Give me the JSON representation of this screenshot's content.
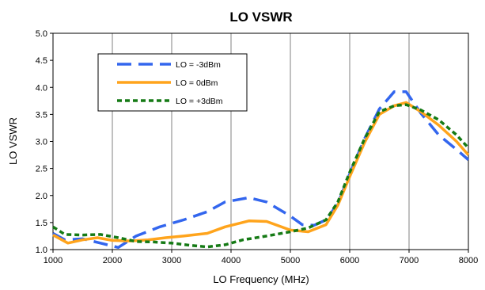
{
  "chart_data": {
    "type": "line",
    "title": "LO VSWR",
    "xlabel": "LO Frequency (MHz)",
    "ylabel": "LO VSWR",
    "xlim": [
      1000,
      8000
    ],
    "ylim": [
      1.0,
      5.0
    ],
    "x_ticks": [
      "1000",
      "2000",
      "3000",
      "4000",
      "5000",
      "6000",
      "7000",
      "8000"
    ],
    "y_ticks": [
      "1.0",
      "1.5",
      "2.0",
      "2.5",
      "3.0",
      "3.5",
      "4.0",
      "4.5",
      "5.0"
    ],
    "grid": {
      "vertical": true,
      "horizontal": false
    },
    "legend_position": "top-left",
    "series": [
      {
        "name": "LO = -3dBm",
        "color": "#3366ee",
        "dash": "long-dash",
        "points": [
          [
            1000,
            1.3
          ],
          [
            1200,
            1.18
          ],
          [
            1500,
            1.2
          ],
          [
            1800,
            1.12
          ],
          [
            2100,
            1.04
          ],
          [
            2400,
            1.25
          ],
          [
            2800,
            1.42
          ],
          [
            3200,
            1.55
          ],
          [
            3600,
            1.7
          ],
          [
            3900,
            1.88
          ],
          [
            4300,
            1.96
          ],
          [
            4600,
            1.88
          ],
          [
            5000,
            1.62
          ],
          [
            5200,
            1.46
          ],
          [
            5400,
            1.45
          ],
          [
            5600,
            1.55
          ],
          [
            5800,
            1.85
          ],
          [
            6000,
            2.4
          ],
          [
            6250,
            3.05
          ],
          [
            6500,
            3.6
          ],
          [
            6750,
            3.92
          ],
          [
            6950,
            3.92
          ],
          [
            7200,
            3.52
          ],
          [
            7500,
            3.12
          ],
          [
            7800,
            2.85
          ],
          [
            8000,
            2.66
          ]
        ]
      },
      {
        "name": "LO = 0dBm",
        "color": "#ffa41c",
        "dash": "solid",
        "points": [
          [
            1000,
            1.27
          ],
          [
            1250,
            1.12
          ],
          [
            1500,
            1.18
          ],
          [
            1750,
            1.22
          ],
          [
            2000,
            1.17
          ],
          [
            2300,
            1.16
          ],
          [
            2600,
            1.18
          ],
          [
            2900,
            1.22
          ],
          [
            3200,
            1.25
          ],
          [
            3600,
            1.3
          ],
          [
            3900,
            1.42
          ],
          [
            4300,
            1.53
          ],
          [
            4600,
            1.52
          ],
          [
            5000,
            1.36
          ],
          [
            5300,
            1.33
          ],
          [
            5600,
            1.46
          ],
          [
            5800,
            1.82
          ],
          [
            6000,
            2.35
          ],
          [
            6250,
            2.98
          ],
          [
            6500,
            3.5
          ],
          [
            6750,
            3.66
          ],
          [
            6950,
            3.72
          ],
          [
            7200,
            3.55
          ],
          [
            7500,
            3.3
          ],
          [
            7800,
            3.0
          ],
          [
            8000,
            2.75
          ]
        ]
      },
      {
        "name": "LO = +3dBm",
        "color": "#157a15",
        "dash": "short-dash",
        "points": [
          [
            1000,
            1.42
          ],
          [
            1200,
            1.28
          ],
          [
            1500,
            1.27
          ],
          [
            1800,
            1.28
          ],
          [
            2100,
            1.22
          ],
          [
            2400,
            1.15
          ],
          [
            2700,
            1.14
          ],
          [
            3000,
            1.12
          ],
          [
            3300,
            1.08
          ],
          [
            3600,
            1.05
          ],
          [
            3900,
            1.09
          ],
          [
            4200,
            1.18
          ],
          [
            4600,
            1.25
          ],
          [
            5000,
            1.33
          ],
          [
            5300,
            1.4
          ],
          [
            5600,
            1.55
          ],
          [
            5800,
            1.88
          ],
          [
            6000,
            2.43
          ],
          [
            6250,
            3.05
          ],
          [
            6500,
            3.55
          ],
          [
            6750,
            3.66
          ],
          [
            6950,
            3.68
          ],
          [
            7200,
            3.58
          ],
          [
            7500,
            3.4
          ],
          [
            7800,
            3.12
          ],
          [
            8000,
            2.88
          ]
        ]
      }
    ]
  }
}
